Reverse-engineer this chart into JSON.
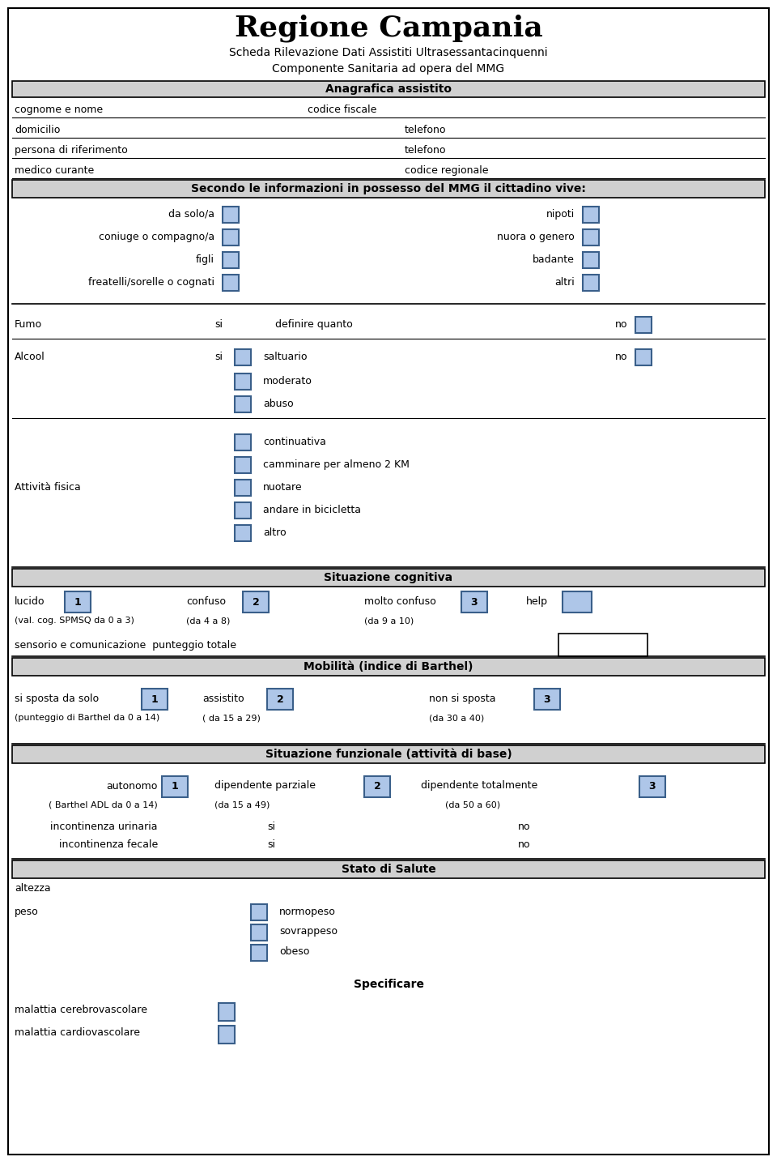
{
  "title": "Regione Campania",
  "subtitle1": "Scheda Rilevazione Dati Assistiti Ultrasessantacinquenni",
  "subtitle2": "Componente Sanitaria ad opera del MMG",
  "bg_color": "#ffffff",
  "header_bg": "#d0d0d0",
  "box_fill": "#aec6e8",
  "box_border": "#3a5f8a",
  "fig_width": 9.6,
  "fig_height": 14.33,
  "dpi": 100
}
